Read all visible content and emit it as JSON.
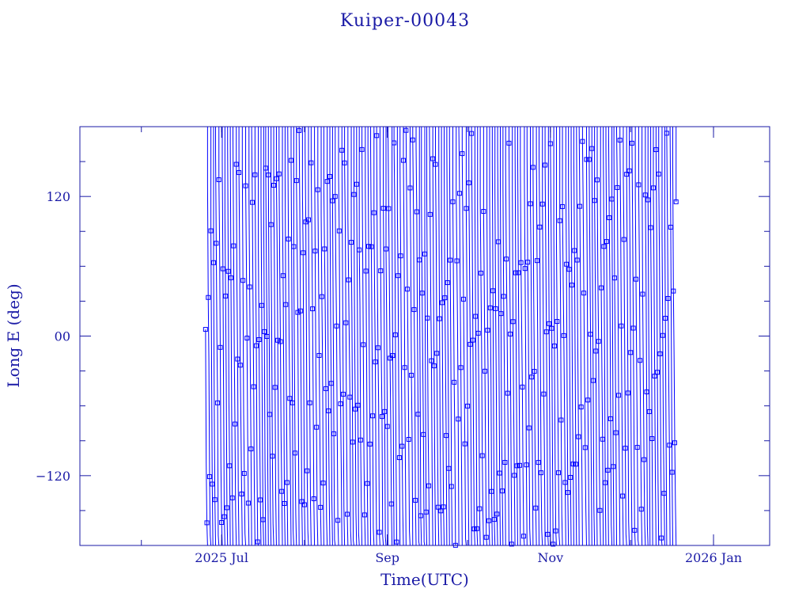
{
  "chart_data": {
    "type": "line",
    "title": "Kuiper-00043",
    "xlabel": "Time(UTC)",
    "ylabel": "Long E (deg)",
    "x_ticks": [
      "2025 Jul",
      "Sep",
      "Nov",
      "2026 Jan"
    ],
    "x_tick_dates": [
      "2025-07-01",
      "2025-09-01",
      "2025-11-01",
      "2026-01-01"
    ],
    "xlim": [
      "2025-05-09",
      "2026-01-22"
    ],
    "y_ticks": [
      120,
      0,
      -120
    ],
    "y_tick_labels": [
      "120",
      "00",
      "−120"
    ],
    "ylim": [
      -180,
      180
    ],
    "data_start": "2025-06-25",
    "data_end": "2025-12-18",
    "wrap_range": [
      -180,
      180
    ],
    "series_color": "#0000ff",
    "marker": "square",
    "samples_per_day": 4,
    "drift_deg_per_sample": -83,
    "grid": false,
    "legend": "none"
  }
}
